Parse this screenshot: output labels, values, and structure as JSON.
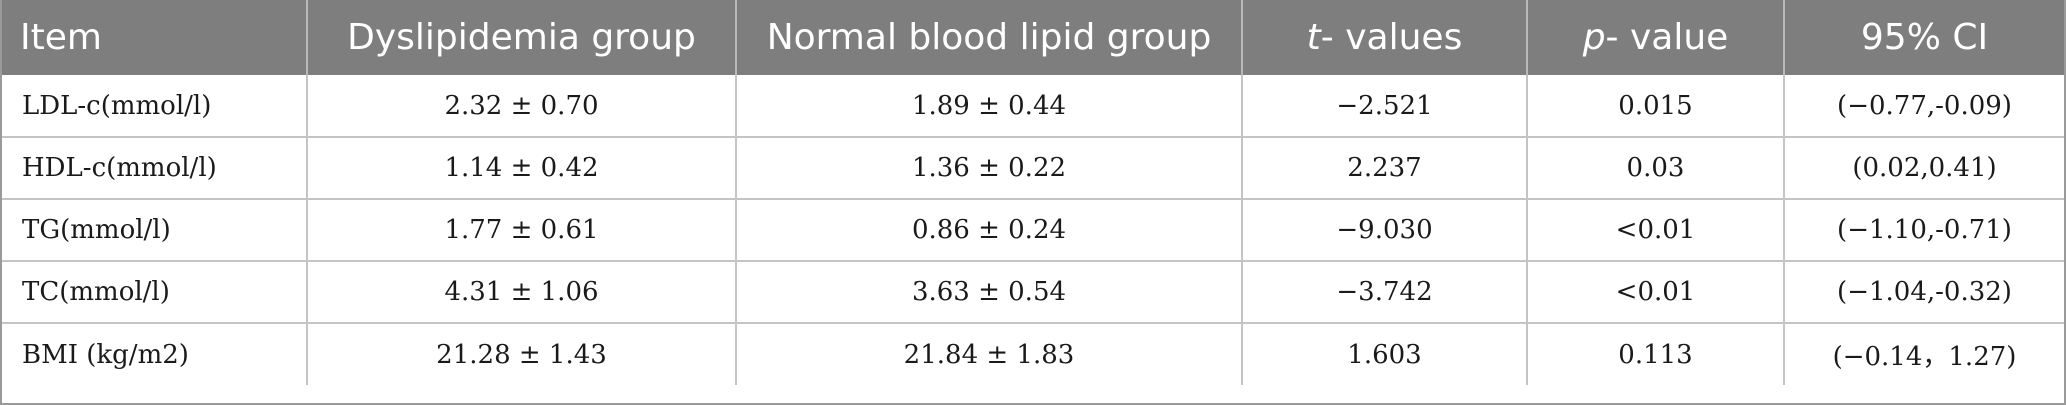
{
  "table": {
    "headers": {
      "item": "Item",
      "dyslipidemia": "Dyslipidemia group",
      "normal": "Normal blood lipid group",
      "t_italic": "t",
      "t_rest": "- values",
      "p_italic": "p",
      "p_rest": "- value",
      "ci": "95% CI"
    },
    "rows": [
      {
        "item": "LDL-c(mmol/l)",
        "dyslipidemia": "2.32 ± 0.70",
        "normal": "1.89 ± 0.44",
        "t": "−2.521",
        "p": "0.015",
        "ci": "(−0.77,-0.09)"
      },
      {
        "item": "HDL-c(mmol/l)",
        "dyslipidemia": "1.14 ± 0.42",
        "normal": "1.36 ± 0.22",
        "t": "2.237",
        "p": "0.03",
        "ci": "(0.02,0.41)"
      },
      {
        "item": "TG(mmol/l)",
        "dyslipidemia": "1.77 ± 0.61",
        "normal": "0.86 ± 0.24",
        "t": "−9.030",
        "p": "<0.01",
        "ci": "(−1.10,-0.71)"
      },
      {
        "item": "TC(mmol/l)",
        "dyslipidemia": "4.31 ± 1.06",
        "normal": "3.63 ± 0.54",
        "t": "−3.742",
        "p": "<0.01",
        "ci": "(−1.04,-0.32)"
      },
      {
        "item": "BMI (kg/m2)",
        "dyslipidemia": "21.28 ± 1.43",
        "normal": "21.84 ± 1.83",
        "t": "1.603",
        "p": "0.113",
        "ci": "(−0.14，1.27)"
      }
    ]
  }
}
